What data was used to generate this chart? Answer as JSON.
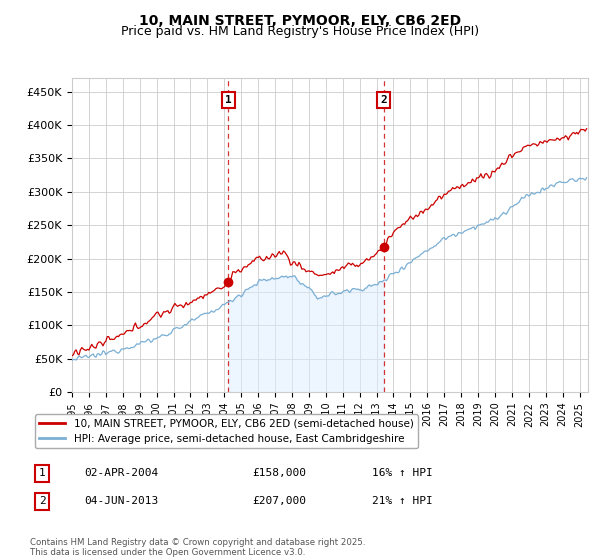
{
  "title_line1": "10, MAIN STREET, PYMOOR, ELY, CB6 2ED",
  "title_line2": "Price paid vs. HM Land Registry's House Price Index (HPI)",
  "ylabel_ticks": [
    "£0",
    "£50K",
    "£100K",
    "£150K",
    "£200K",
    "£250K",
    "£300K",
    "£350K",
    "£400K",
    "£450K"
  ],
  "ytick_values": [
    0,
    50000,
    100000,
    150000,
    200000,
    250000,
    300000,
    350000,
    400000,
    450000
  ],
  "ylim": [
    0,
    470000
  ],
  "xlim_start": 1995.0,
  "xlim_end": 2025.5,
  "x_tick_years": [
    1995,
    1996,
    1997,
    1998,
    1999,
    2000,
    2001,
    2002,
    2003,
    2004,
    2005,
    2006,
    2007,
    2008,
    2009,
    2010,
    2011,
    2012,
    2013,
    2014,
    2015,
    2016,
    2017,
    2018,
    2019,
    2020,
    2021,
    2022,
    2023,
    2024,
    2025
  ],
  "legend_line1": "10, MAIN STREET, PYMOOR, ELY, CB6 2ED (semi-detached house)",
  "legend_line2": "HPI: Average price, semi-detached house, East Cambridgeshire",
  "sale1_x": 2004.25,
  "sale1_y": 158000,
  "sale1_label": "1",
  "sale1_date": "02-APR-2004",
  "sale1_price": "£158,000",
  "sale1_hpi": "16% ↑ HPI",
  "sale2_x": 2013.42,
  "sale2_y": 207000,
  "sale2_label": "2",
  "sale2_date": "04-JUN-2013",
  "sale2_price": "£207,000",
  "sale2_hpi": "21% ↑ HPI",
  "line_color_red": "#cc0000",
  "line_color_blue": "#7bafd4",
  "fill_color_blue": "#ddeeff",
  "grid_color": "#cccccc",
  "bg_color": "#ffffff",
  "footnote": "Contains HM Land Registry data © Crown copyright and database right 2025.\nThis data is licensed under the Open Government Licence v3.0."
}
